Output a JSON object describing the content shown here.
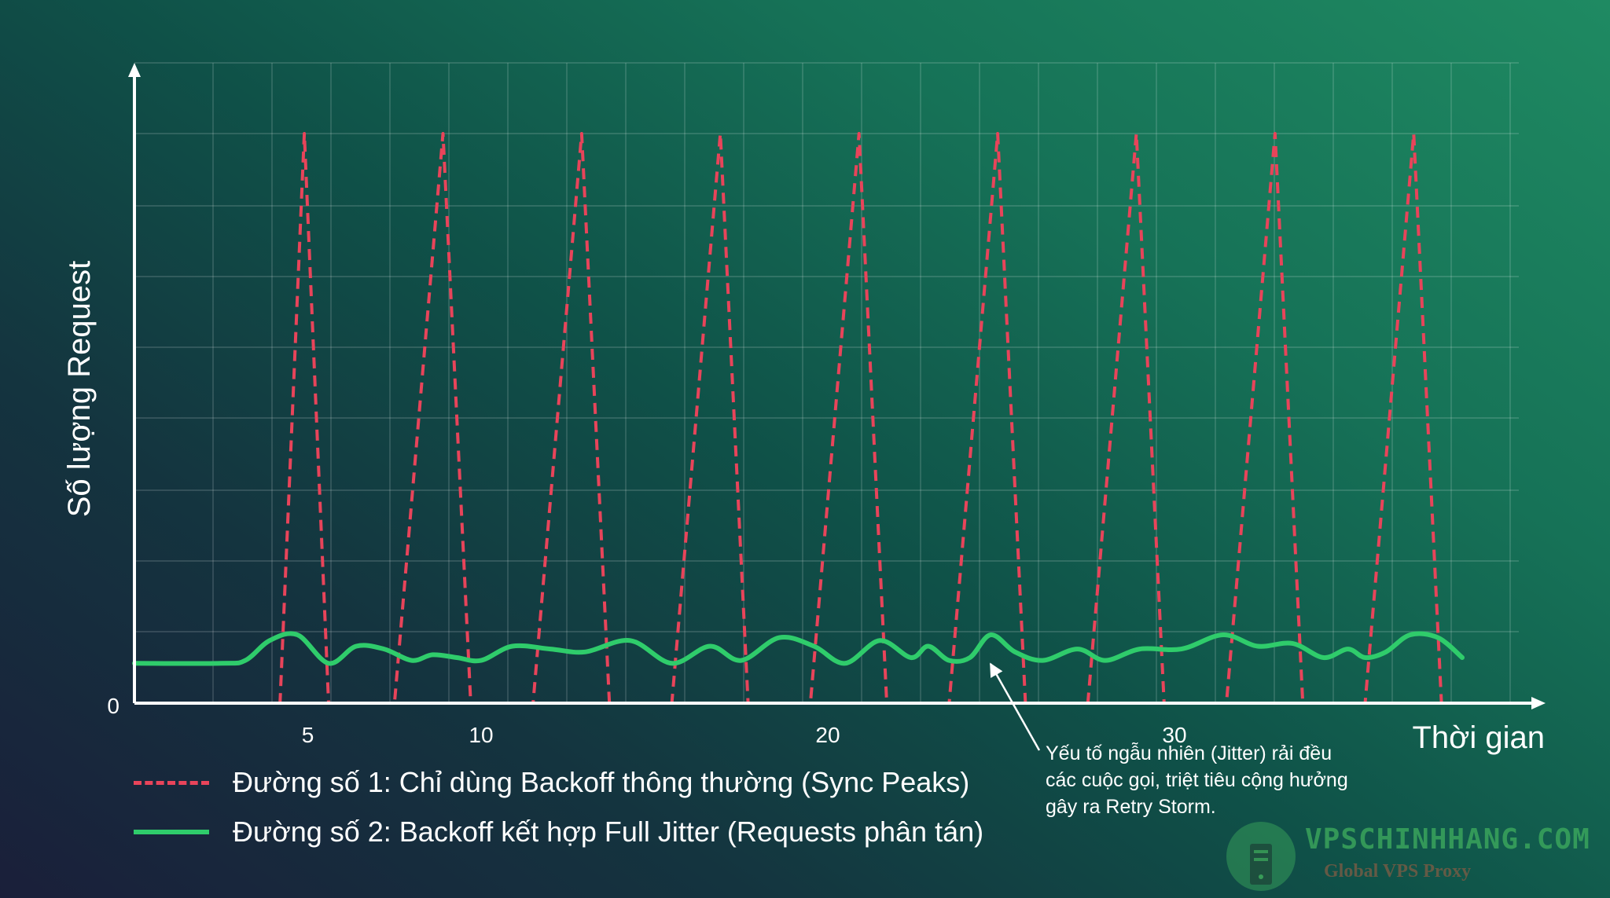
{
  "chart_data": {
    "type": "line",
    "ylabel": "Số lượng Request",
    "xlabel": "Thời gian",
    "y_tick_labels": [
      "0"
    ],
    "x_tick_labels": [
      {
        "label": "5",
        "value": 5
      },
      {
        "label": "10",
        "value": 10
      },
      {
        "label": "20",
        "value": 20
      },
      {
        "label": "30",
        "value": 30
      }
    ],
    "xlim": [
      0,
      40
    ],
    "ylim": [
      0,
      100
    ],
    "grid": true,
    "legend_placement": "bottom-left",
    "series": [
      {
        "name": "Đường số 1: Chỉ dùng Backoff thông thường (Sync Peaks)",
        "style": "dashed",
        "color": "#e8445a",
        "points": [
          [
            0,
            0
          ],
          [
            3.5,
            0
          ],
          [
            4.2,
            0
          ],
          [
            4.9,
            100
          ],
          [
            5.6,
            0
          ],
          [
            7.5,
            0
          ],
          [
            8.9,
            100
          ],
          [
            9.7,
            0
          ],
          [
            11.5,
            0
          ],
          [
            12.9,
            100
          ],
          [
            13.7,
            0
          ],
          [
            15.5,
            0
          ],
          [
            16.9,
            100
          ],
          [
            17.7,
            0
          ],
          [
            19.5,
            0
          ],
          [
            20.9,
            100
          ],
          [
            21.7,
            0
          ],
          [
            23.5,
            0
          ],
          [
            24.9,
            100
          ],
          [
            25.7,
            0
          ],
          [
            27.5,
            0
          ],
          [
            28.9,
            100
          ],
          [
            29.7,
            0
          ],
          [
            31.5,
            0
          ],
          [
            32.9,
            100
          ],
          [
            33.7,
            0
          ],
          [
            35.5,
            0
          ],
          [
            36.9,
            100
          ],
          [
            37.7,
            0
          ],
          [
            38,
            0
          ]
        ]
      },
      {
        "name": "Đường số 2: Backoff kết hợp Full Jitter (Requests phân tán)",
        "style": "solid",
        "color": "#2fcc6b",
        "points": [
          [
            0,
            7
          ],
          [
            2.5,
            7
          ],
          [
            3.2,
            7.5
          ],
          [
            3.9,
            11
          ],
          [
            4.7,
            12
          ],
          [
            5.6,
            7
          ],
          [
            6.4,
            10
          ],
          [
            7.2,
            9.5
          ],
          [
            8,
            7.5
          ],
          [
            8.6,
            8.5
          ],
          [
            9.3,
            8
          ],
          [
            10,
            7.5
          ],
          [
            10.9,
            10
          ],
          [
            12,
            9.5
          ],
          [
            13,
            9
          ],
          [
            14.3,
            11
          ],
          [
            15.5,
            7
          ],
          [
            16.6,
            10
          ],
          [
            17.5,
            7.5
          ],
          [
            18.6,
            11.5
          ],
          [
            19.6,
            10
          ],
          [
            20.5,
            7
          ],
          [
            21.5,
            11
          ],
          [
            22.4,
            8
          ],
          [
            22.9,
            10
          ],
          [
            23.5,
            7.5
          ],
          [
            24.1,
            8
          ],
          [
            24.7,
            12
          ],
          [
            25.4,
            9
          ],
          [
            26.2,
            7.5
          ],
          [
            27.2,
            9.5
          ],
          [
            28,
            7.5
          ],
          [
            29,
            9.5
          ],
          [
            30.2,
            9.5
          ],
          [
            31.4,
            12
          ],
          [
            32.4,
            10
          ],
          [
            33.4,
            10.5
          ],
          [
            34.3,
            8
          ],
          [
            35,
            9.5
          ],
          [
            35.5,
            8
          ],
          [
            36.1,
            9
          ],
          [
            36.8,
            12
          ],
          [
            37.6,
            11.5
          ],
          [
            38.3,
            8
          ]
        ]
      }
    ],
    "annotation": {
      "text": [
        "Yếu tố ngẫu nhiên (Jitter) rải đều",
        "các cuộc gọi, triệt tiêu cộng hưởng",
        "gây ra Retry Storm."
      ],
      "points_to_x": 24.1
    }
  },
  "watermark": {
    "name": "VPSCHINHHANG.COM",
    "tagline": "Global VPS Proxy"
  },
  "colors": {
    "axis": "#ffffff",
    "grid": "rgba(255,255,255,0.22)",
    "series1": "#e8445a",
    "series2": "#2fcc6b"
  }
}
